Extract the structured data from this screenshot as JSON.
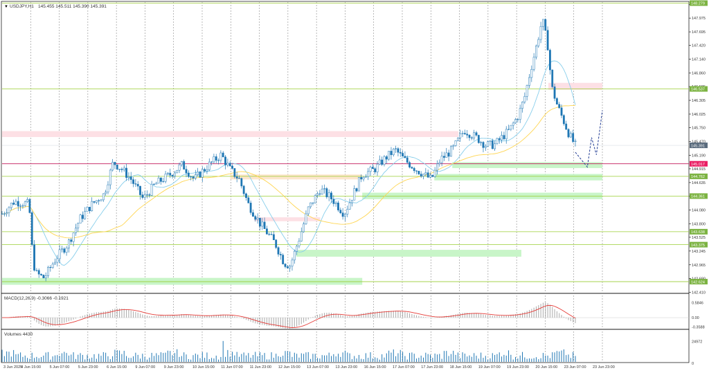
{
  "header": {
    "symbol_label": "USDJPY,H1",
    "ohlc": "145.455 145.511 145.390 145.391"
  },
  "colors": {
    "bull": "#1f77b4",
    "bear": "#1f77b4",
    "ma_fast": "#87ceeb",
    "ma_slow": "#ffd54f",
    "macd_hist": "#a9a9a9",
    "macd_signal": "#e53935",
    "volume": "#1f77b4",
    "level_line": "#9acd32",
    "level_label_bg": "#7cb342",
    "current_label_bg": "#5a6b7d",
    "resistance_line": "#c2185b",
    "resistance_label_bg": "#e91e63",
    "zone_green": "#c8f5c8",
    "zone_pink": "#fde0e5",
    "zone_orange": "#fde6cc",
    "grid": "#8a8a8a"
  },
  "chart_data": [
    {
      "type": "candlestick",
      "title": "USDJPY,H1",
      "price_axis_ticks": [
        "148.250",
        "147.975",
        "147.695",
        "147.420",
        "147.140",
        "146.860",
        "146.585",
        "146.305",
        "146.025",
        "145.750",
        "145.470",
        "145.190",
        "144.915",
        "144.635",
        "144.360",
        "144.080",
        "143.800",
        "143.525",
        "143.245",
        "142.965",
        "142.690",
        "142.410"
      ],
      "ylim": [
        142.4,
        148.3
      ],
      "price_labels": [
        {
          "value": 148.279,
          "text": "148.279",
          "kind": "level"
        },
        {
          "value": 146.537,
          "text": "146.537",
          "kind": "level"
        },
        {
          "value": 145.391,
          "text": "145.391",
          "kind": "current"
        },
        {
          "value": 145.017,
          "text": "145.017",
          "kind": "resistance"
        },
        {
          "value": 144.762,
          "text": "144.762",
          "kind": "level"
        },
        {
          "value": 144.361,
          "text": "144.361",
          "kind": "level"
        },
        {
          "value": 143.638,
          "text": "143.638",
          "kind": "level"
        },
        {
          "value": 143.375,
          "text": "143.375",
          "kind": "level"
        },
        {
          "value": 142.624,
          "text": "142.624",
          "kind": "level"
        }
      ],
      "zones": [
        {
          "kind": "green",
          "from": 142.56,
          "to": 142.7,
          "x_start": 0.0,
          "x_end": 0.6
        },
        {
          "kind": "green",
          "from": 143.13,
          "to": 143.27,
          "x_start": 0.49,
          "x_end": 0.865
        },
        {
          "kind": "green",
          "from": 144.3,
          "to": 144.43,
          "x_start": 0.6,
          "x_end": 1.0
        },
        {
          "kind": "green",
          "from": 144.68,
          "to": 144.81,
          "x_start": 0.72,
          "x_end": 1.0
        },
        {
          "kind": "green",
          "from": 144.93,
          "to": 145.05,
          "x_start": 0.75,
          "x_end": 1.0
        },
        {
          "kind": "pink",
          "from": 145.56,
          "to": 145.68,
          "x_start": 0.0,
          "x_end": 0.76
        },
        {
          "kind": "pink",
          "from": 146.52,
          "to": 146.66,
          "x_start": 0.91,
          "x_end": 1.0
        },
        {
          "kind": "orange",
          "from": 144.7,
          "to": 144.8,
          "x_start": 0.38,
          "x_end": 0.6
        },
        {
          "kind": "pink",
          "from": 143.85,
          "to": 143.93,
          "x_start": 0.42,
          "x_end": 0.53
        }
      ],
      "forecast_path": [
        {
          "t": 0.955,
          "v": 145.25
        },
        {
          "t": 0.975,
          "v": 144.95
        },
        {
          "t": 0.982,
          "v": 145.55
        },
        {
          "t": 0.99,
          "v": 145.2
        },
        {
          "t": 1.0,
          "v": 146.1
        }
      ],
      "time_labels": [
        "3 Jun 2025",
        "4 Jun 15:00",
        "5 Jun 07:00",
        "5 Jun 23:00",
        "6 Jun 15:00",
        "9 Jun 07:00",
        "9 Jun 23:00",
        "10 Jun 15:00",
        "11 Jun 07:00",
        "11 Jun 23:00",
        "12 Jun 15:00",
        "13 Jun 07:00",
        "13 Jun 23:00",
        "16 Jun 15:00",
        "17 Jun 07:00",
        "17 Jun 23:00",
        "18 Jun 15:00",
        "19 Jun 07:00",
        "19 Jun 23:00",
        "20 Jun 15:00",
        "23 Jun 07:00",
        "23 Jun 23:00"
      ]
    },
    {
      "type": "bar",
      "title": "MACD(12,26,9) -0.3066 -0.1921",
      "ticks": [
        "0.5846",
        "0.00",
        "-0.3588"
      ],
      "ylim": [
        -0.4,
        0.62
      ]
    },
    {
      "type": "bar",
      "title": "Volumes 4430",
      "ticks": [
        "24972",
        "0"
      ],
      "ylim": [
        0,
        26000
      ]
    }
  ]
}
